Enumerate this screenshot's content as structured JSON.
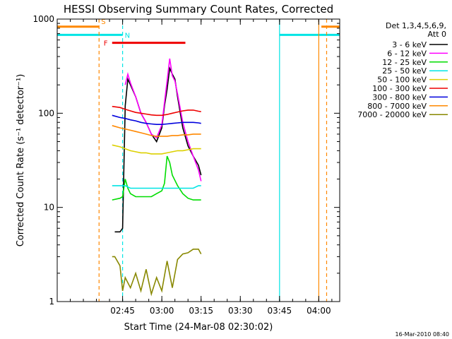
{
  "chart_data": {
    "type": "line",
    "title": "HESSI Observing Summary Count Rates, Corrected",
    "xlabel": "Start Time (24-Mar-08 02:30:02)",
    "ylabel": "Corrected Count Rate (s⁻¹ detector⁻¹)",
    "y_scale": "log",
    "ylim": [
      1,
      1000
    ],
    "xlim_minutes": [
      -10,
      98
    ],
    "x_ticks": [
      {
        "label": "02:45",
        "value": 15
      },
      {
        "label": "03:00",
        "value": 30
      },
      {
        "label": "03:15",
        "value": 45
      },
      {
        "label": "03:30",
        "value": 60
      },
      {
        "label": "03:45",
        "value": 75
      },
      {
        "label": "04:00",
        "value": 90
      }
    ],
    "y_ticks": [
      {
        "label": "1",
        "value": 1
      },
      {
        "label": "10",
        "value": 10
      },
      {
        "label": "100",
        "value": 100
      },
      {
        "label": "1000",
        "value": 1000
      }
    ],
    "legend": {
      "placement": "right",
      "header": [
        "Det 1,3,4,5,6,9,",
        "Att 0"
      ],
      "entries": [
        {
          "label": "3 - 6 keV",
          "color": "#000000"
        },
        {
          "label": "6 - 12 keV",
          "color": "#ff00ff"
        },
        {
          "label": "12 - 25 keV",
          "color": "#00dd00"
        },
        {
          "label": "25 - 50 keV",
          "color": "#00e5e5"
        },
        {
          "label": "50 - 100 keV",
          "color": "#dcd000"
        },
        {
          "label": "100 - 300 keV",
          "color": "#ee0000"
        },
        {
          "label": "300 - 800 keV",
          "color": "#0000dd"
        },
        {
          "label": "800 - 7000 keV",
          "color": "#ff8800"
        },
        {
          "label": "7000 - 20000 keV",
          "color": "#888800"
        }
      ]
    },
    "series": [
      {
        "name": "3 - 6 keV",
        "color": "#000000",
        "x": [
          12,
          14,
          15,
          16,
          17,
          18,
          20,
          22,
          24,
          26,
          28,
          30,
          31,
          32,
          33,
          34,
          35,
          36,
          38,
          40,
          42,
          44,
          45
        ],
        "y": [
          5.5,
          5.5,
          6,
          120,
          230,
          200,
          150,
          100,
          80,
          60,
          50,
          70,
          120,
          180,
          300,
          260,
          230,
          150,
          70,
          45,
          35,
          28,
          22
        ]
      },
      {
        "name": "6 - 12 keV",
        "color": "#ff00ff",
        "x": [
          16,
          17,
          18,
          20,
          22,
          24,
          26,
          28,
          30,
          31,
          32,
          33,
          34,
          35,
          36,
          38,
          40,
          42,
          44,
          45
        ],
        "y": [
          200,
          260,
          210,
          150,
          100,
          80,
          60,
          55,
          75,
          130,
          220,
          380,
          250,
          220,
          160,
          80,
          50,
          35,
          25,
          19
        ]
      },
      {
        "name": "12 - 25 keV",
        "color": "#00dd00",
        "x": [
          11,
          14,
          15,
          16,
          17,
          18,
          20,
          22,
          24,
          26,
          28,
          30,
          31,
          32,
          33,
          34,
          36,
          38,
          40,
          42,
          44,
          45
        ],
        "y": [
          12,
          12.5,
          13,
          20,
          16,
          14,
          13,
          13,
          13,
          13,
          14,
          15,
          18,
          35,
          30,
          22,
          17,
          14,
          12.5,
          12,
          12,
          12
        ]
      },
      {
        "name": "25 - 50 keV",
        "color": "#00e5e5",
        "x": [
          11,
          14,
          16,
          18,
          20,
          22,
          24,
          26,
          28,
          30,
          32,
          34,
          36,
          38,
          40,
          42,
          44,
          45
        ],
        "y": [
          17,
          17,
          17,
          16,
          16,
          16,
          16,
          16,
          16,
          16,
          16,
          16,
          16,
          16,
          16,
          16,
          17,
          17
        ]
      },
      {
        "name": "50 - 100 keV",
        "color": "#dcd000",
        "x": [
          11,
          14,
          16,
          18,
          20,
          22,
          24,
          26,
          28,
          30,
          32,
          34,
          36,
          38,
          40,
          42,
          44,
          45
        ],
        "y": [
          46,
          44,
          42,
          40,
          39,
          38,
          38,
          37,
          37,
          37,
          38,
          39,
          40,
          40,
          41,
          42,
          42,
          42
        ]
      },
      {
        "name": "100 - 300 keV",
        "color": "#ee0000",
        "x": [
          11,
          14,
          16,
          18,
          20,
          22,
          24,
          26,
          28,
          30,
          32,
          34,
          36,
          38,
          40,
          42,
          44,
          45
        ],
        "y": [
          118,
          115,
          110,
          106,
          102,
          100,
          98,
          96,
          95,
          95,
          97,
          100,
          103,
          106,
          108,
          108,
          105,
          104
        ]
      },
      {
        "name": "300 - 800 keV",
        "color": "#0000dd",
        "x": [
          11,
          14,
          16,
          18,
          20,
          22,
          24,
          26,
          28,
          30,
          32,
          34,
          36,
          38,
          40,
          42,
          44,
          45
        ],
        "y": [
          95,
          90,
          88,
          85,
          83,
          80,
          78,
          77,
          76,
          76,
          77,
          78,
          79,
          80,
          80,
          80,
          79,
          78
        ]
      },
      {
        "name": "800 - 7000 keV",
        "color": "#ff8800",
        "x": [
          11,
          14,
          16,
          18,
          20,
          22,
          24,
          26,
          28,
          30,
          32,
          34,
          36,
          38,
          40,
          42,
          44,
          45
        ],
        "y": [
          74,
          70,
          68,
          66,
          64,
          62,
          60,
          58,
          57,
          57,
          57,
          58,
          58,
          59,
          59,
          60,
          60,
          60
        ]
      },
      {
        "name": "7000 - 20000 keV",
        "color": "#888800",
        "x": [
          11,
          12,
          14,
          15,
          16,
          18,
          20,
          22,
          24,
          26,
          28,
          30,
          32,
          34,
          36,
          38,
          40,
          42,
          44,
          45
        ],
        "y": [
          3,
          3,
          2.4,
          1.3,
          1.8,
          1.4,
          2,
          1.3,
          2.2,
          1.2,
          1.8,
          1.3,
          2.7,
          1.4,
          2.8,
          3.2,
          3.3,
          3.6,
          3.6,
          3.2
        ]
      }
    ],
    "flag_bars": [
      {
        "label": "S",
        "color": "#ff8800",
        "level": 830,
        "segments": [
          [
            -10,
            6
          ],
          [
            91,
            98
          ]
        ]
      },
      {
        "label": "N",
        "color": "#00e5e5",
        "level": 680,
        "segments": [
          [
            -10,
            15
          ],
          [
            75,
            98
          ]
        ]
      },
      {
        "label": "F",
        "color": "#ee0000",
        "level": 560,
        "segments": [
          [
            11,
            39
          ]
        ]
      }
    ],
    "vertical_markers": [
      {
        "x": 6,
        "color": "#ff8800",
        "style": "dashed"
      },
      {
        "x": 15,
        "color": "#00e5e5",
        "style": "dashed"
      },
      {
        "x": 75,
        "color": "#00e5e5",
        "style": "solid"
      },
      {
        "x": 90,
        "color": "#ff8800",
        "style": "solid"
      },
      {
        "x": 93,
        "color": "#ff8800",
        "style": "dashed"
      }
    ],
    "timestamp": "16-Mar-2010 08:40"
  }
}
